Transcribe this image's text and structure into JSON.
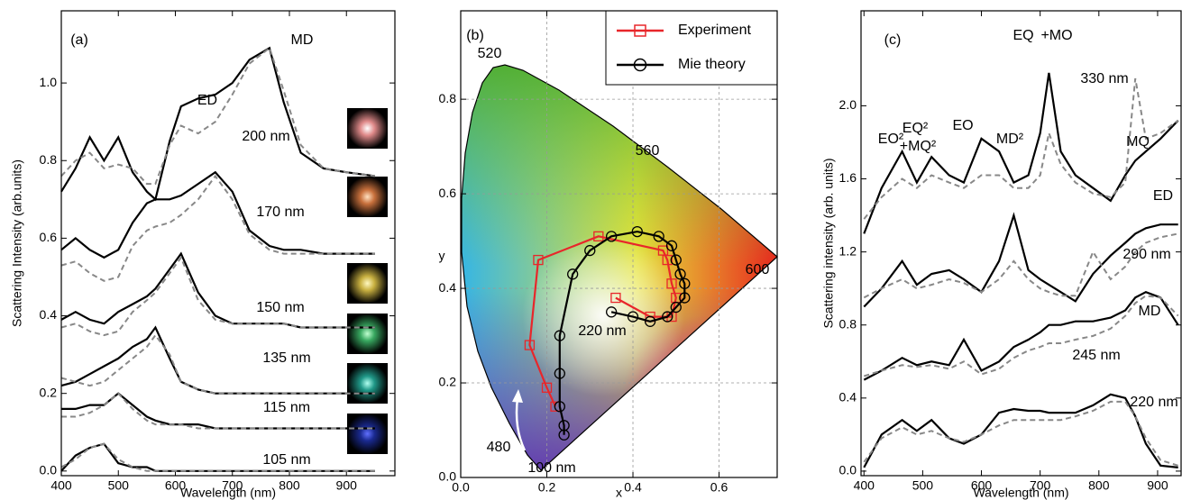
{
  "chart_data": [
    {
      "type": "line",
      "xlabel": "Wavelength (nm)",
      "ylabel": "Scattering Intensity (arb.units)",
      "xlim": [
        400,
        985
      ],
      "ylim": [
        -0.012,
        1.186
      ],
      "xticks": [
        400,
        500,
        600,
        700,
        800,
        900
      ],
      "yticks": [
        {
          "value": 0,
          "label": "0.0"
        },
        0.2,
        0.4,
        0.6,
        0.8,
        {
          "value": 1,
          "label": "1.0"
        }
      ],
      "grid": false,
      "x": [
        400,
        425,
        450,
        475,
        500,
        525,
        550,
        565,
        590,
        610,
        640,
        670,
        700,
        730,
        765,
        790,
        820,
        860,
        900,
        950
      ],
      "series": [
        {
          "color": "#000000",
          "linestyle": "solid",
          "values": [
            0.72,
            0.78,
            0.86,
            0.8,
            0.86,
            0.77,
            0.72,
            0.7,
            0.85,
            0.94,
            0.96,
            0.97,
            1.0,
            1.06,
            1.09,
            0.95,
            0.82,
            0.78,
            0.77,
            0.76
          ]
        },
        {
          "color": "#888888",
          "linestyle": "dashed",
          "values": [
            0.76,
            0.8,
            0.82,
            0.78,
            0.79,
            0.78,
            0.74,
            0.74,
            0.84,
            0.89,
            0.87,
            0.9,
            0.97,
            1.05,
            1.09,
            0.98,
            0.84,
            0.78,
            0.77,
            0.76
          ]
        },
        {
          "color": "#000000",
          "linestyle": "solid",
          "values": [
            0.57,
            0.6,
            0.57,
            0.55,
            0.57,
            0.64,
            0.69,
            0.7,
            0.7,
            0.71,
            0.74,
            0.77,
            0.72,
            0.62,
            0.58,
            0.57,
            0.57,
            0.56,
            0.56,
            0.56
          ]
        },
        {
          "color": "#888888",
          "linestyle": "dashed",
          "values": [
            0.53,
            0.54,
            0.51,
            0.49,
            0.5,
            0.58,
            0.62,
            0.63,
            0.64,
            0.66,
            0.7,
            0.76,
            0.7,
            0.61,
            0.57,
            0.56,
            0.56,
            0.56,
            0.56,
            0.56
          ]
        },
        {
          "color": "#000000",
          "linestyle": "solid",
          "values": [
            0.39,
            0.41,
            0.39,
            0.38,
            0.41,
            0.43,
            0.45,
            0.47,
            0.52,
            0.56,
            0.46,
            0.4,
            0.38,
            0.38,
            0.38,
            0.38,
            0.37,
            0.37,
            0.37,
            0.37
          ]
        },
        {
          "color": "#888888",
          "linestyle": "dashed",
          "values": [
            0.37,
            0.38,
            0.36,
            0.35,
            0.36,
            0.41,
            0.44,
            0.46,
            0.51,
            0.55,
            0.44,
            0.39,
            0.38,
            0.38,
            0.38,
            0.38,
            0.37,
            0.37,
            0.37,
            0.37
          ]
        },
        {
          "color": "#000000",
          "linestyle": "solid",
          "values": [
            0.22,
            0.23,
            0.25,
            0.27,
            0.29,
            0.32,
            0.34,
            0.37,
            0.29,
            0.23,
            0.21,
            0.2,
            0.2,
            0.2,
            0.2,
            0.2,
            0.2,
            0.2,
            0.2,
            0.2
          ]
        },
        {
          "color": "#888888",
          "linestyle": "dashed",
          "values": [
            0.24,
            0.23,
            0.22,
            0.23,
            0.26,
            0.29,
            0.32,
            0.35,
            0.3,
            0.23,
            0.21,
            0.2,
            0.2,
            0.2,
            0.2,
            0.2,
            0.2,
            0.2,
            0.2,
            0.2
          ]
        },
        {
          "color": "#000000",
          "linestyle": "solid",
          "values": [
            0.16,
            0.16,
            0.17,
            0.17,
            0.2,
            0.17,
            0.14,
            0.13,
            0.12,
            0.12,
            0.12,
            0.11,
            0.11,
            0.11,
            0.11,
            0.11,
            0.11,
            0.11,
            0.11,
            0.11
          ]
        },
        {
          "color": "#888888",
          "linestyle": "dashed",
          "values": [
            0.14,
            0.14,
            0.15,
            0.17,
            0.2,
            0.16,
            0.13,
            0.12,
            0.12,
            0.12,
            0.11,
            0.11,
            0.11,
            0.11,
            0.11,
            0.11,
            0.11,
            0.11,
            0.11,
            0.11
          ]
        },
        {
          "color": "#000000",
          "linestyle": "solid",
          "values": [
            0.0,
            0.04,
            0.06,
            0.07,
            0.02,
            0.01,
            0.01,
            0.0,
            0.0,
            0.0,
            0.0,
            0.0,
            0.0,
            0.0,
            0.0,
            0.0,
            0.0,
            0.0,
            0.0,
            0.0
          ]
        },
        {
          "color": "#888888",
          "linestyle": "dashed",
          "values": [
            0.01,
            0.03,
            0.06,
            0.07,
            0.03,
            0.01,
            0.0,
            0.0,
            0.0,
            0.0,
            0.0,
            0.0,
            0.0,
            0.0,
            0.0,
            0.0,
            0.0,
            0.0,
            0.0,
            0.0
          ]
        }
      ],
      "annotations": [
        {
          "text": "(a)",
          "color": "#000000"
        },
        {
          "text": "ED",
          "color": "#e8262a"
        },
        {
          "text": "MD",
          "color": "#3b4fa8"
        },
        {
          "text": "200 nm",
          "color": "#000000"
        },
        {
          "text": "170 nm",
          "color": "#000000"
        },
        {
          "text": "150 nm",
          "color": "#000000"
        },
        {
          "text": "135 nm",
          "color": "#000000"
        },
        {
          "text": "115 nm",
          "color": "#000000"
        },
        {
          "text": "105 nm",
          "color": "#000000"
        }
      ]
    },
    {
      "type": "line",
      "xlabel": "x",
      "ylabel": "y",
      "xlim": [
        0,
        0.735
      ],
      "ylim": [
        0,
        0.987
      ],
      "xticks": [
        {
          "value": 0,
          "label": "0.0"
        },
        0.2,
        0.4,
        0.6
      ],
      "yticks": [
        {
          "value": 0,
          "label": "0.0"
        },
        0.2,
        0.4,
        0.6,
        0.8
      ],
      "grid": true,
      "legend": "top-right",
      "series": [
        {
          "name": "Experiment",
          "color": "#e8262a",
          "marker": "square",
          "x": [
            0.22,
            0.2,
            0.16,
            0.18,
            0.32,
            0.47,
            0.48,
            0.49,
            0.5,
            0.49,
            0.44,
            0.36
          ],
          "values": [
            0.15,
            0.19,
            0.28,
            0.46,
            0.51,
            0.48,
            0.46,
            0.41,
            0.38,
            0.34,
            0.34,
            0.38
          ]
        },
        {
          "name": "Mie theory",
          "color": "#000000",
          "marker": "circle",
          "x": [
            0.24,
            0.24,
            0.23,
            0.23,
            0.23,
            0.26,
            0.3,
            0.35,
            0.41,
            0.46,
            0.49,
            0.5,
            0.51,
            0.52,
            0.52,
            0.5,
            0.48,
            0.44,
            0.4,
            0.35
          ],
          "values": [
            0.09,
            0.11,
            0.15,
            0.22,
            0.3,
            0.43,
            0.48,
            0.51,
            0.52,
            0.51,
            0.49,
            0.46,
            0.43,
            0.41,
            0.38,
            0.36,
            0.34,
            0.33,
            0.34,
            0.35
          ]
        }
      ],
      "annotations": [
        {
          "text": "(b)",
          "color": "#000000"
        },
        {
          "text": "520",
          "color": "#000000"
        },
        {
          "text": "560",
          "color": "#000000"
        },
        {
          "text": "600",
          "color": "#000000"
        },
        {
          "text": "480",
          "color": "#000000"
        },
        {
          "text": "220 nm",
          "color": "#000000"
        },
        {
          "text": "100 nm",
          "color": "#ffffff"
        }
      ]
    },
    {
      "type": "line",
      "xlabel": "Wavelength (nm)",
      "ylabel": "Scattering intensity (arb. units)",
      "xlim": [
        395,
        940
      ],
      "ylim": [
        -0.025,
        2.52
      ],
      "xticks": [
        400,
        500,
        600,
        700,
        800,
        900
      ],
      "yticks": [
        {
          "value": 0,
          "label": "0.0"
        },
        0.4,
        0.8,
        1.2,
        1.6,
        {
          "value": 2,
          "label": "2.0"
        }
      ],
      "grid": false,
      "x": [
        400,
        430,
        465,
        490,
        515,
        545,
        570,
        600,
        630,
        655,
        680,
        700,
        715,
        735,
        760,
        790,
        820,
        845,
        862,
        880,
        905,
        935
      ],
      "series": [
        {
          "color": "#000000",
          "linestyle": "solid",
          "values": [
            1.3,
            1.55,
            1.75,
            1.58,
            1.72,
            1.62,
            1.58,
            1.82,
            1.75,
            1.58,
            1.62,
            1.85,
            2.18,
            1.75,
            1.62,
            1.55,
            1.48,
            1.62,
            1.7,
            1.75,
            1.82,
            1.92
          ]
        },
        {
          "color": "#888888",
          "linestyle": "dashed",
          "values": [
            1.38,
            1.5,
            1.6,
            1.55,
            1.62,
            1.58,
            1.55,
            1.62,
            1.62,
            1.55,
            1.55,
            1.62,
            1.85,
            1.68,
            1.58,
            1.52,
            1.5,
            1.58,
            2.15,
            1.82,
            1.85,
            1.92
          ]
        },
        {
          "color": "#000000",
          "linestyle": "solid",
          "values": [
            0.9,
            1.0,
            1.15,
            1.02,
            1.08,
            1.1,
            1.05,
            0.98,
            1.15,
            1.4,
            1.1,
            1.05,
            1.02,
            0.98,
            0.93,
            1.08,
            1.18,
            1.25,
            1.3,
            1.33,
            1.35,
            1.35
          ]
        },
        {
          "color": "#888888",
          "linestyle": "dashed",
          "values": [
            0.95,
            1.0,
            1.05,
            1.0,
            1.02,
            1.05,
            1.03,
            0.98,
            1.05,
            1.15,
            1.05,
            1.0,
            0.98,
            0.96,
            0.96,
            1.2,
            1.05,
            1.12,
            1.2,
            1.25,
            1.28,
            1.3
          ]
        },
        {
          "color": "#000000",
          "linestyle": "solid",
          "values": [
            0.5,
            0.55,
            0.62,
            0.58,
            0.6,
            0.58,
            0.72,
            0.55,
            0.6,
            0.68,
            0.72,
            0.76,
            0.8,
            0.8,
            0.82,
            0.82,
            0.84,
            0.88,
            0.95,
            0.98,
            0.95,
            0.8
          ]
        },
        {
          "color": "#888888",
          "linestyle": "dashed",
          "values": [
            0.52,
            0.55,
            0.58,
            0.57,
            0.58,
            0.56,
            0.6,
            0.53,
            0.56,
            0.62,
            0.66,
            0.68,
            0.7,
            0.7,
            0.72,
            0.74,
            0.78,
            0.85,
            0.92,
            0.96,
            0.95,
            0.85
          ]
        },
        {
          "color": "#000000",
          "linestyle": "solid",
          "values": [
            0.02,
            0.2,
            0.28,
            0.22,
            0.28,
            0.18,
            0.15,
            0.2,
            0.32,
            0.34,
            0.33,
            0.33,
            0.32,
            0.32,
            0.32,
            0.36,
            0.42,
            0.4,
            0.3,
            0.15,
            0.03,
            0.02
          ]
        },
        {
          "color": "#888888",
          "linestyle": "dashed",
          "values": [
            0.05,
            0.18,
            0.24,
            0.2,
            0.22,
            0.18,
            0.16,
            0.2,
            0.25,
            0.28,
            0.28,
            0.28,
            0.28,
            0.28,
            0.3,
            0.33,
            0.38,
            0.38,
            0.3,
            0.18,
            0.06,
            0.03
          ]
        }
      ],
      "annotations": [
        {
          "text": "(c)",
          "color": "#000000"
        },
        {
          "text": "EQ",
          "color": "#e8262a"
        },
        {
          "text": "+MO",
          "color": "#3b4fa8"
        },
        {
          "text": "EO²",
          "color": "#e8262a"
        },
        {
          "text": "EQ²",
          "color": "#e8262a"
        },
        {
          "text": "+MQ²",
          "color": "#3b4fa8"
        },
        {
          "text": "EO",
          "color": "#e8262a"
        },
        {
          "text": "MD²",
          "color": "#3b4fa8"
        },
        {
          "text": "330 nm",
          "color": "#000000"
        },
        {
          "text": "MQ",
          "color": "#3b4fa8"
        },
        {
          "text": "ED",
          "color": "#e8262a"
        },
        {
          "text": "290 nm",
          "color": "#000000"
        },
        {
          "text": "MD",
          "color": "#3b4fa8"
        },
        {
          "text": "245 nm",
          "color": "#000000"
        },
        {
          "text": "220 nm",
          "color": "#000000"
        }
      ]
    }
  ]
}
